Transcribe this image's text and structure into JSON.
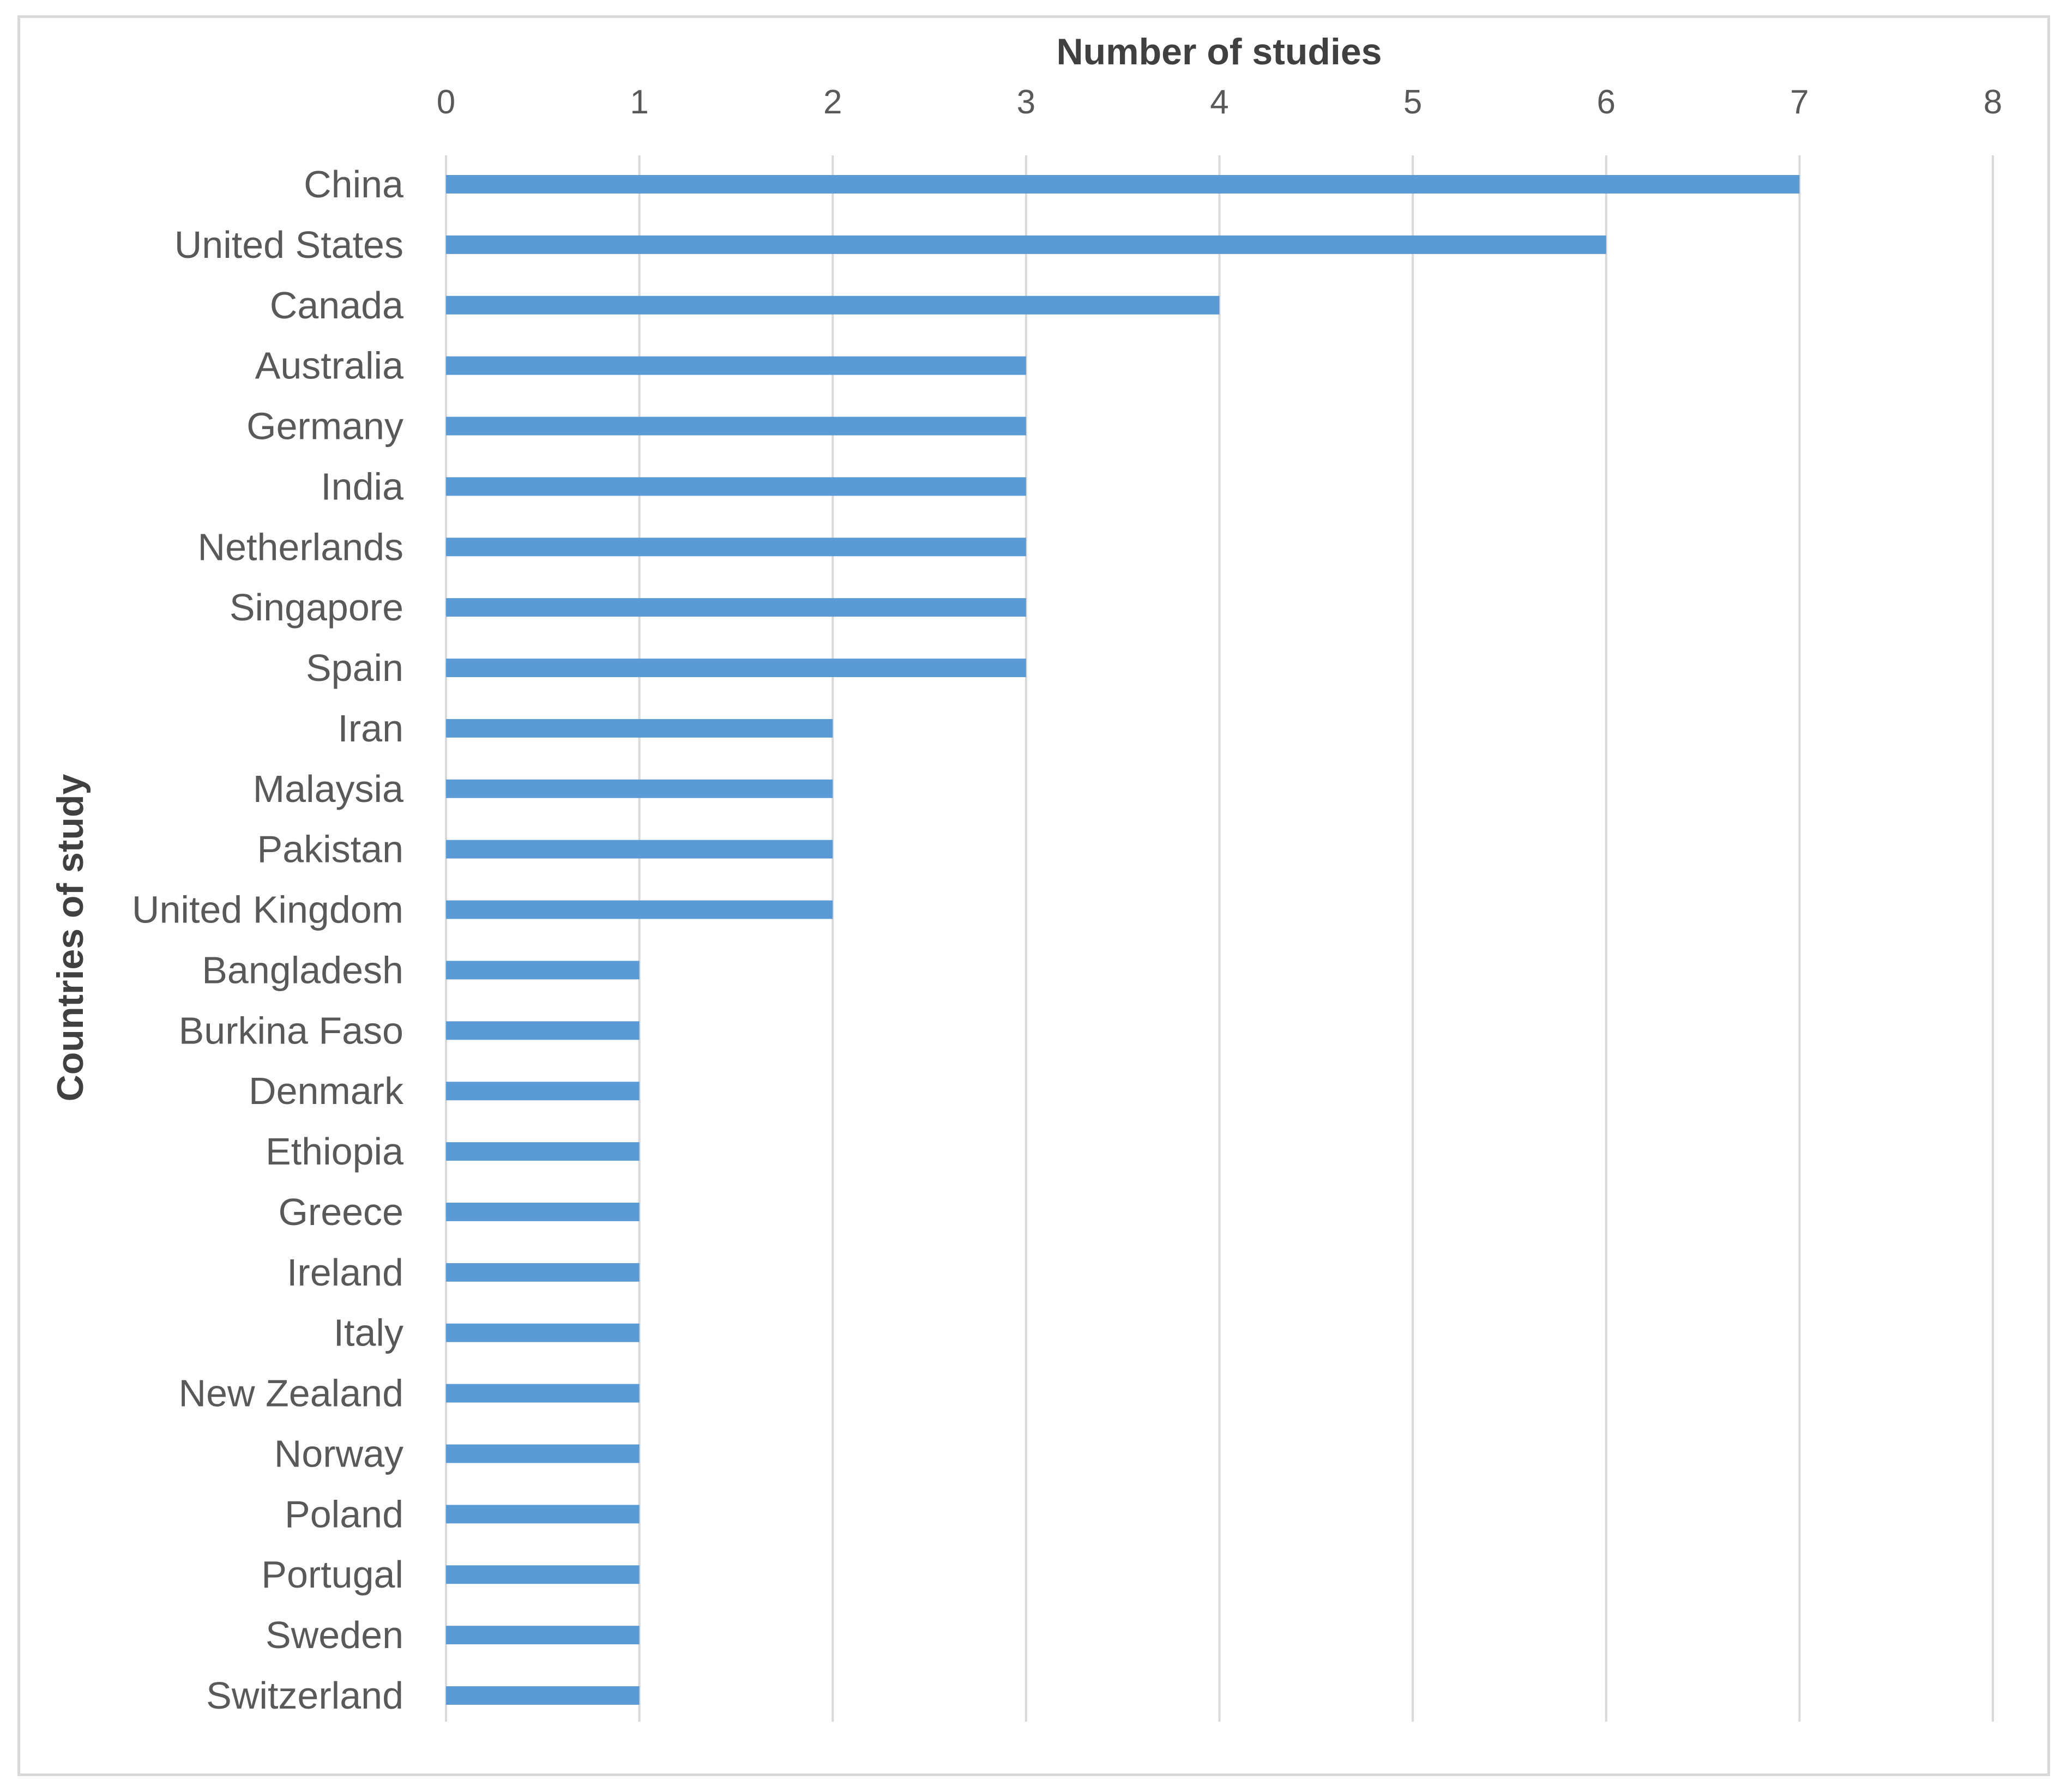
{
  "chart_data": {
    "type": "bar",
    "orientation": "horizontal",
    "categories": [
      "China",
      "United States",
      "Canada",
      "Australia",
      "Germany",
      "India",
      "Netherlands",
      "Singapore",
      "Spain",
      "Iran",
      "Malaysia",
      "Pakistan",
      "United Kingdom",
      "Bangladesh",
      "Burkina Faso",
      "Denmark",
      "Ethiopia",
      "Greece",
      "Ireland",
      "Italy",
      "New Zealand",
      "Norway",
      "Poland",
      "Portugal",
      "Sweden",
      "Switzerland"
    ],
    "values": [
      7,
      6,
      4,
      3,
      3,
      3,
      3,
      3,
      3,
      2,
      2,
      2,
      2,
      1,
      1,
      1,
      1,
      1,
      1,
      1,
      1,
      1,
      1,
      1,
      1,
      1
    ],
    "title": "",
    "xlabel": "Number of studies",
    "ylabel": "Countries of study",
    "xlim": [
      0,
      8
    ],
    "xticks": [
      "0",
      "1",
      "2",
      "3",
      "4",
      "5",
      "6",
      "7",
      "8"
    ],
    "x_axis_position": "top",
    "grid": true,
    "legend": "none",
    "bar_color": "#5b9bd5",
    "grid_color": "#d9d9d9"
  }
}
